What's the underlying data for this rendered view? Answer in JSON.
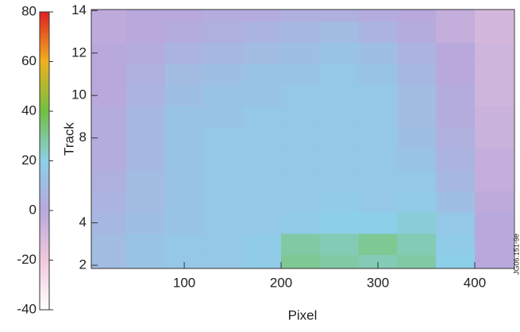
{
  "chart_data": {
    "type": "heatmap",
    "x_label": "Pixel",
    "y_label": "Track",
    "figure_id": "JG06.151-9e",
    "x": [
      20,
      60,
      100,
      140,
      180,
      220,
      260,
      300,
      340,
      380,
      420
    ],
    "y": [
      2,
      3,
      4,
      5,
      6,
      7,
      8,
      9,
      10,
      11,
      12,
      13,
      14
    ],
    "values": [
      [
        10,
        14,
        16,
        16,
        18,
        30,
        28,
        26,
        28,
        20,
        0
      ],
      [
        10,
        14,
        16,
        16,
        18,
        28,
        26,
        30,
        26,
        18,
        0
      ],
      [
        8,
        12,
        14,
        16,
        16,
        18,
        20,
        20,
        22,
        16,
        0
      ],
      [
        6,
        10,
        14,
        16,
        16,
        16,
        18,
        16,
        18,
        12,
        -2
      ],
      [
        4,
        10,
        14,
        16,
        16,
        16,
        16,
        16,
        16,
        8,
        -4
      ],
      [
        2,
        8,
        14,
        16,
        16,
        16,
        16,
        16,
        14,
        6,
        -4
      ],
      [
        2,
        8,
        14,
        16,
        16,
        16,
        16,
        16,
        12,
        4,
        -6
      ],
      [
        2,
        8,
        14,
        14,
        16,
        16,
        16,
        16,
        10,
        2,
        -6
      ],
      [
        0,
        6,
        12,
        14,
        14,
        16,
        16,
        16,
        10,
        2,
        -8
      ],
      [
        0,
        4,
        10,
        12,
        14,
        14,
        16,
        14,
        8,
        0,
        -8
      ],
      [
        0,
        2,
        6,
        8,
        10,
        12,
        14,
        12,
        6,
        0,
        -8
      ],
      [
        -2,
        0,
        2,
        4,
        6,
        8,
        10,
        6,
        2,
        -4,
        -10
      ],
      [
        -2,
        0,
        0,
        2,
        2,
        4,
        4,
        2,
        0,
        -4,
        -10
      ]
    ],
    "xlim": [
      4,
      441
    ],
    "ylim": [
      1.85,
      14.05
    ],
    "xticks": [
      100,
      200,
      300,
      400
    ],
    "yticks": [
      2,
      4,
      8,
      10,
      12,
      14
    ],
    "clim": [
      -40,
      80
    ],
    "cticks": [
      -40,
      -20,
      0,
      20,
      40,
      60,
      80
    ],
    "colorscale": [
      [
        -40,
        "#ffffff"
      ],
      [
        -20,
        "#f0c8dc"
      ],
      [
        0,
        "#b8a8dc"
      ],
      [
        20,
        "#8ccfe8"
      ],
      [
        40,
        "#70c040"
      ],
      [
        60,
        "#f0b020"
      ],
      [
        80,
        "#e02020"
      ]
    ]
  }
}
